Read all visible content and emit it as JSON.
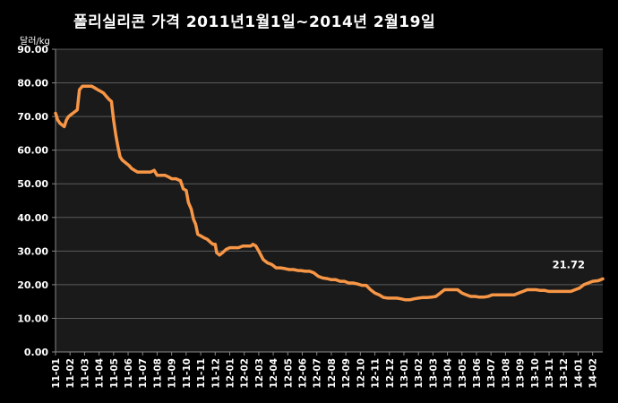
{
  "chart_data": {
    "type": "line",
    "title": "폴리실리콘 가격    2011년1월1일~2014년 2월19일",
    "ylabel": "달러/kg",
    "ylim": [
      0,
      90
    ],
    "y_ticks": [
      "0.00",
      "10.00",
      "20.00",
      "30.00",
      "40.00",
      "50.00",
      "60.00",
      "70.00",
      "80.00",
      "90.00"
    ],
    "grid": true,
    "categories": [
      "11-01",
      "11-02",
      "11-03",
      "11-04",
      "11-05",
      "11-06",
      "11-07",
      "11-08",
      "11-09",
      "11-10",
      "11-11",
      "11-12",
      "12-01",
      "12-02",
      "12-03",
      "12-04",
      "12-05",
      "12-06",
      "12-07",
      "12-08",
      "12-09",
      "12-10",
      "12-11",
      "12-12",
      "13-01",
      "13-02",
      "13-03",
      "13-04",
      "13-05",
      "13-06",
      "13-07",
      "13-08",
      "13-09",
      "13-10",
      "13-11",
      "13-12",
      "14-01",
      "14-02"
    ],
    "series": [
      {
        "color": "#f79646",
        "x": [
          0,
          0.15,
          0.3,
          0.45,
          0.6,
          0.75,
          0.9,
          1.05,
          1.2,
          1.35,
          1.5,
          1.65,
          1.85,
          2,
          2.15,
          2.3,
          2.5,
          2.7,
          2.9,
          3.1,
          3.3,
          3.5,
          3.7,
          3.85,
          4,
          4.15,
          4.3,
          4.45,
          4.6,
          4.75,
          4.9,
          5.05,
          5.25,
          5.45,
          5.65,
          5.85,
          6.05,
          6.3,
          6.55,
          6.8,
          7.0,
          7.05,
          7.3,
          7.55,
          7.8,
          8.0,
          8.3,
          8.55,
          8.6,
          8.8,
          9.0,
          9.15,
          9.35,
          9.5,
          9.65,
          9.8,
          10.0,
          10.2,
          10.45,
          10.7,
          10.85,
          11.0,
          11.1,
          11.3,
          11.5,
          11.75,
          12.0,
          12.3,
          12.6,
          12.9,
          13.2,
          13.45,
          13.6,
          13.8,
          14.0,
          14.3,
          14.6,
          14.9,
          15.2,
          15.5,
          15.8,
          16.1,
          16.4,
          16.7,
          16.9,
          17.2,
          17.5,
          17.8,
          18.1,
          18.4,
          18.7,
          19.0,
          19.3,
          19.6,
          19.9,
          20.2,
          20.5,
          20.8,
          21.1,
          21.4,
          21.7,
          22.0,
          22.3,
          22.6,
          22.9,
          23.2,
          23.5,
          23.8,
          24.1,
          24.4,
          24.7,
          25.0,
          25.3,
          25.6,
          25.9,
          26.2,
          26.5,
          26.8,
          27.1,
          27.4,
          27.7,
          28.0,
          28.3,
          28.6,
          28.9,
          29.2,
          29.5,
          29.8,
          30.1,
          30.4,
          30.7,
          31.0,
          31.3,
          31.6,
          31.9,
          32.2,
          32.5,
          32.8,
          33.1,
          33.4,
          33.7,
          34.0,
          34.3,
          34.6,
          34.9,
          35.2,
          35.5,
          35.8,
          36.1,
          36.4,
          36.7,
          37.0,
          37.4,
          37.7
        ],
        "values": [
          71,
          69,
          68,
          67.5,
          67,
          69,
          70,
          70.5,
          71,
          71.5,
          72,
          78,
          79,
          79,
          79,
          79,
          79,
          78.5,
          78,
          77.5,
          77,
          76,
          75,
          74.5,
          69,
          64.5,
          61,
          58,
          57,
          56.5,
          56,
          55.5,
          54.5,
          54,
          53.5,
          53.5,
          53.5,
          53.5,
          53.5,
          54,
          52.5,
          52.5,
          52.5,
          52.5,
          52,
          51.5,
          51.5,
          51,
          51,
          48.5,
          48,
          44.5,
          42.5,
          39.5,
          38,
          35,
          34.5,
          34,
          33.5,
          32.5,
          32,
          32,
          29.5,
          28.8,
          29.5,
          30.5,
          31,
          31,
          31,
          31.5,
          31.5,
          31.5,
          32,
          31.5,
          30,
          27.5,
          26.5,
          26,
          25,
          25,
          24.8,
          24.5,
          24.5,
          24.2,
          24.2,
          24,
          24,
          23.5,
          22.5,
          22,
          21.8,
          21.5,
          21.5,
          21,
          21,
          20.5,
          20.5,
          20.2,
          19.8,
          19.8,
          18.5,
          17.5,
          17,
          16.2,
          16,
          16,
          16,
          15.8,
          15.5,
          15.5,
          15.8,
          16,
          16.2,
          16.2,
          16.3,
          16.5,
          17.5,
          18.5,
          18.5,
          18.5,
          18.5,
          17.5,
          17,
          16.5,
          16.5,
          16.3,
          16.3,
          16.5,
          17,
          17,
          17,
          17,
          17,
          17,
          17.5,
          18,
          18.5,
          18.5,
          18.5,
          18.3,
          18.3,
          18,
          18,
          18,
          18,
          18,
          18,
          18.5,
          19,
          20,
          20.5,
          21,
          21.2,
          21.72
        ]
      }
    ],
    "annotations": [
      {
        "text": "21.72",
        "x": 37.7,
        "y": 21.72
      }
    ]
  }
}
